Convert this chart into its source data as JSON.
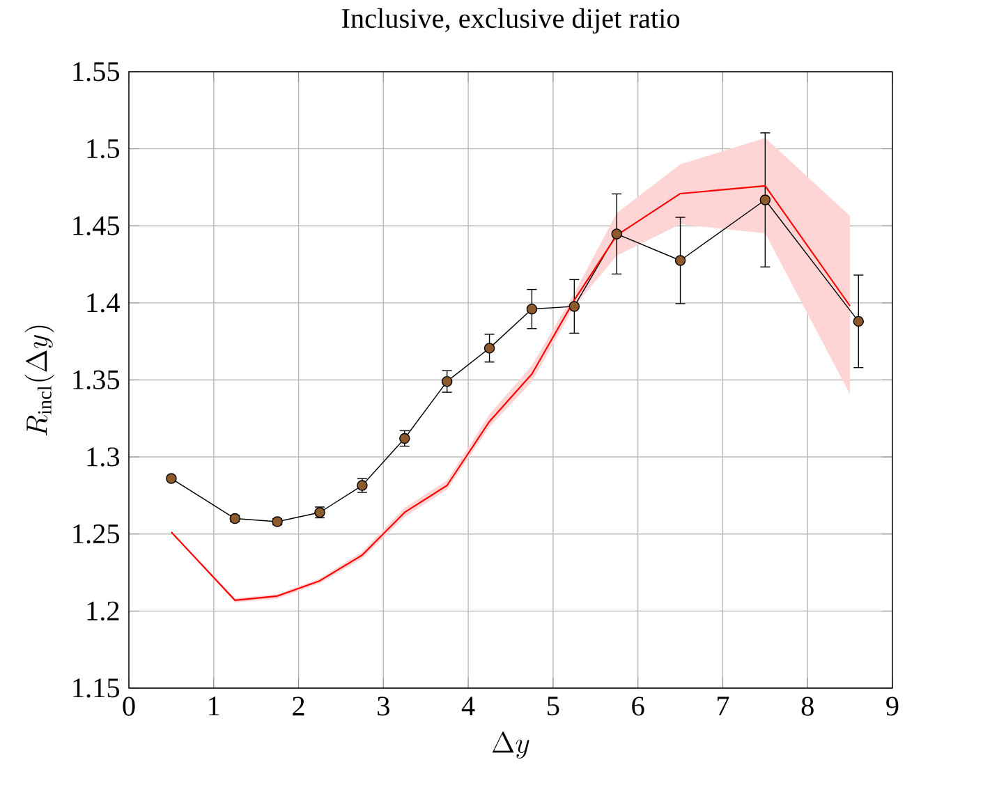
{
  "chart_data": {
    "type": "line",
    "title": "Inclusive, exclusive dijet ratio",
    "xlabel": "\\Delta y",
    "ylabel": "R_{\\mathrm{incl}}(\\Delta y)",
    "xlim": [
      0,
      9
    ],
    "ylim": [
      1.15,
      1.55
    ],
    "xticks": [
      0,
      1,
      2,
      3,
      4,
      5,
      6,
      7,
      8,
      9
    ],
    "yticks": [
      1.15,
      1.2,
      1.25,
      1.3,
      1.35,
      1.4,
      1.45,
      1.5,
      1.55
    ],
    "grid": true,
    "series": [
      {
        "marker": "circle",
        "color": "#8c5a2b",
        "x": [
          0.5,
          1.25,
          1.75,
          2.25,
          2.75,
          3.25,
          3.75,
          4.25,
          4.75,
          5.25,
          5.75,
          6.5,
          7.5,
          8.6
        ],
        "values": [
          1.286,
          1.26,
          1.258,
          1.264,
          1.2815,
          1.312,
          1.349,
          1.3706,
          1.396,
          1.3977,
          1.4447,
          1.4275,
          1.4668,
          1.388
        ],
        "errors": [
          null,
          0.002,
          0.002,
          0.0035,
          0.0045,
          0.005,
          0.007,
          0.009,
          0.0127,
          0.0174,
          0.026,
          0.028,
          0.0435,
          0.03
        ]
      },
      {
        "marker": "none",
        "color": "#ff0000",
        "x": [
          0.5,
          1.25,
          1.75,
          2.25,
          2.75,
          3.25,
          3.75,
          4.25,
          4.75,
          5.25,
          5.75,
          6.5,
          7.5,
          8.5
        ],
        "values": [
          1.2512,
          1.207,
          1.2097,
          1.2196,
          1.2363,
          1.264,
          1.2815,
          1.323,
          1.3538,
          1.4018,
          1.4438,
          1.4709,
          1.4759,
          1.398
        ],
        "lower": [
          1.251,
          1.2056,
          1.2079,
          1.218,
          1.234,
          1.261,
          1.2788,
          1.3195,
          1.3489,
          1.3977,
          1.4307,
          1.451,
          1.4451,
          1.3407
        ],
        "upper": [
          1.252,
          1.2083,
          1.211,
          1.221,
          1.2386,
          1.267,
          1.2847,
          1.3276,
          1.3593,
          1.4063,
          1.4582,
          1.4899,
          1.507,
          1.4564
        ]
      }
    ]
  }
}
